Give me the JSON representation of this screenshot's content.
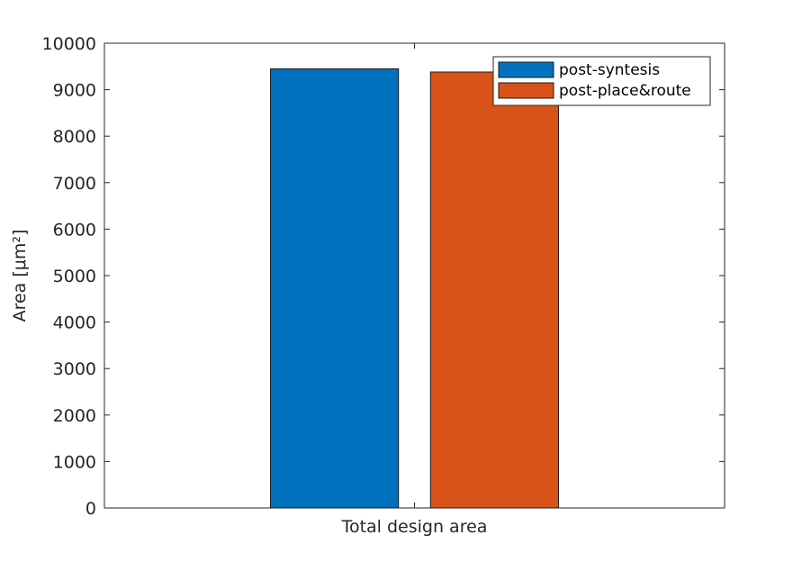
{
  "chart_data": {
    "type": "bar",
    "categories": [
      "Total design area"
    ],
    "series": [
      {
        "name": "post-syntesis",
        "values": [
          9450
        ],
        "color": "#0072BD"
      },
      {
        "name": "post-place&route",
        "values": [
          9380
        ],
        "color": "#D95319"
      }
    ],
    "title": "",
    "xlabel": "",
    "ylabel": "Area [μm²]",
    "ylim": [
      0,
      10000
    ],
    "yticks": [
      0,
      1000,
      2000,
      3000,
      4000,
      5000,
      6000,
      7000,
      8000,
      9000,
      10000
    ],
    "grid": false,
    "legend_position": "top-right"
  }
}
